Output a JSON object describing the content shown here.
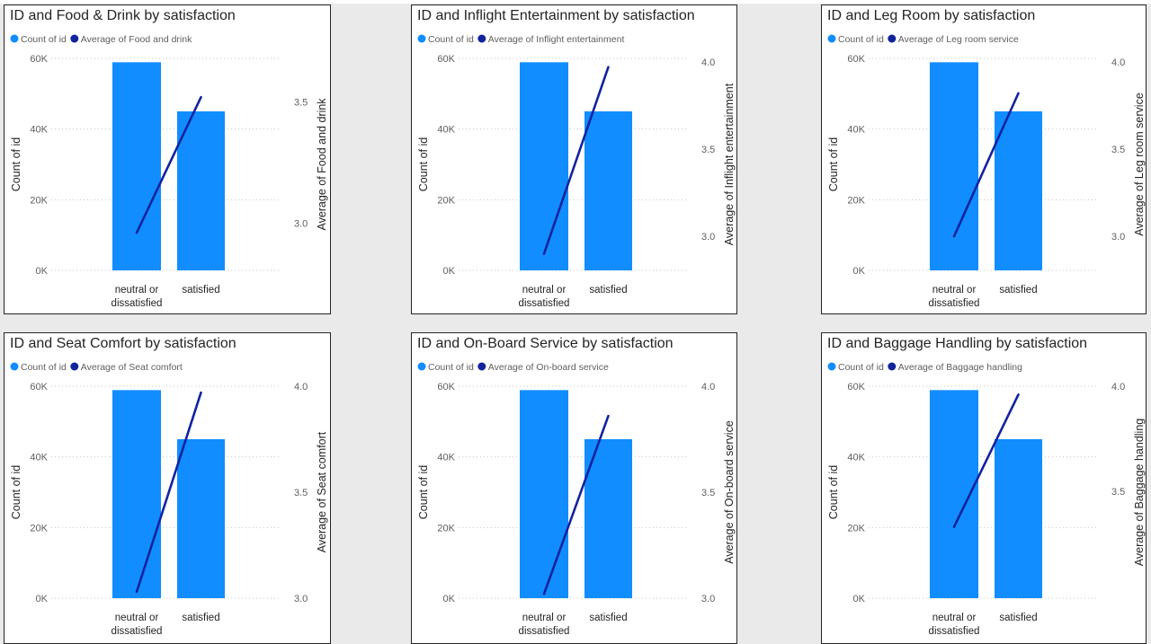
{
  "colors": {
    "bar": "#118dff",
    "line": "#12239e"
  },
  "chart_data": [
    {
      "type": "bar+line",
      "title": "ID and Food & Drink by satisfaction",
      "legend": [
        "Count of id",
        "Average of Food and drink"
      ],
      "categories": [
        "neutral or dissatisfied",
        "satisfied"
      ],
      "y_label": "Count of id",
      "y_ticks": [
        "60K",
        "40K",
        "20K",
        "0K"
      ],
      "y_range": [
        0,
        60000
      ],
      "bar_values": [
        58900,
        45000
      ],
      "y2_label": "Average of Food and drink",
      "y2_ticks": [
        "3.5",
        "3.0"
      ],
      "y2_tick_values": [
        3.5,
        3.0
      ],
      "y2_range": [
        2.805,
        3.68
      ],
      "line_values": [
        2.96,
        3.52
      ]
    },
    {
      "type": "bar+line",
      "title": "ID and Inflight Entertainment by satisfaction",
      "legend": [
        "Count of id",
        "Average of Inflight entertainment"
      ],
      "categories": [
        "neutral or dissatisfied",
        "satisfied"
      ],
      "y_label": "Count of id",
      "y_ticks": [
        "60K",
        "40K",
        "20K",
        "0K"
      ],
      "y_range": [
        0,
        60000
      ],
      "bar_values": [
        58900,
        45000
      ],
      "y2_label": "Average of Inflight entertainment",
      "y2_ticks": [
        "4.0",
        "3.5",
        "3.0"
      ],
      "y2_tick_values": [
        4.0,
        3.5,
        3.0
      ],
      "y2_range": [
        2.805,
        4.02
      ],
      "line_values": [
        2.9,
        3.97
      ]
    },
    {
      "type": "bar+line",
      "title": "ID and Leg Room by satisfaction",
      "legend": [
        "Count of id",
        "Average of Leg room service"
      ],
      "categories": [
        "neutral or dissatisfied",
        "satisfied"
      ],
      "y_label": "Count of id",
      "y_ticks": [
        "60K",
        "40K",
        "20K",
        "0K"
      ],
      "y_range": [
        0,
        60000
      ],
      "bar_values": [
        58900,
        45000
      ],
      "y2_label": "Average of Leg room service",
      "y2_ticks": [
        "4.0",
        "3.5",
        "3.0"
      ],
      "y2_tick_values": [
        4.0,
        3.5,
        3.0
      ],
      "y2_range": [
        2.805,
        4.02
      ],
      "line_values": [
        3.0,
        3.82
      ]
    },
    {
      "type": "bar+line",
      "title": "ID and Seat Comfort by satisfaction",
      "legend": [
        "Count of id",
        "Average of Seat comfort"
      ],
      "categories": [
        "neutral or dissatisfied",
        "satisfied"
      ],
      "y_label": "Count of id",
      "y_ticks": [
        "60K",
        "40K",
        "20K",
        "0K"
      ],
      "y_range": [
        0,
        60000
      ],
      "bar_values": [
        58900,
        45000
      ],
      "y2_label": "Average of Seat comfort",
      "y2_ticks": [
        "4.0",
        "3.5",
        "3.0"
      ],
      "y2_tick_values": [
        4.0,
        3.5,
        3.0
      ],
      "y2_range": [
        3.0,
        4.0
      ],
      "line_values": [
        3.03,
        3.97
      ]
    },
    {
      "type": "bar+line",
      "title": "ID and On-Board Service by satisfaction",
      "legend": [
        "Count of id",
        "Average of On-board service"
      ],
      "categories": [
        "neutral or dissatisfied",
        "satisfied"
      ],
      "y_label": "Count of id",
      "y_ticks": [
        "60K",
        "40K",
        "20K",
        "0K"
      ],
      "y_range": [
        0,
        60000
      ],
      "bar_values": [
        58900,
        45000
      ],
      "y2_label": "Average of On-board service",
      "y2_ticks": [
        "4.0",
        "3.5",
        "3.0"
      ],
      "y2_tick_values": [
        4.0,
        3.5,
        3.0
      ],
      "y2_range": [
        3.0,
        4.0
      ],
      "line_values": [
        3.02,
        3.86
      ]
    },
    {
      "type": "bar+line",
      "title": "ID and Baggage Handling by satisfaction",
      "legend": [
        "Count of id",
        "Average of Baggage handling"
      ],
      "categories": [
        "neutral or dissatisfied",
        "satisfied"
      ],
      "y_label": "Count of id",
      "y_ticks": [
        "60K",
        "40K",
        "20K",
        "0K"
      ],
      "y_range": [
        0,
        60000
      ],
      "bar_values": [
        58900,
        45000
      ],
      "y2_label": "Average of Baggage handling",
      "y2_ticks": [
        "4.0",
        "3.5"
      ],
      "y2_tick_values": [
        4.0,
        3.5
      ],
      "y2_range": [
        2.99,
        4.0
      ],
      "line_values": [
        3.33,
        3.96
      ]
    }
  ]
}
